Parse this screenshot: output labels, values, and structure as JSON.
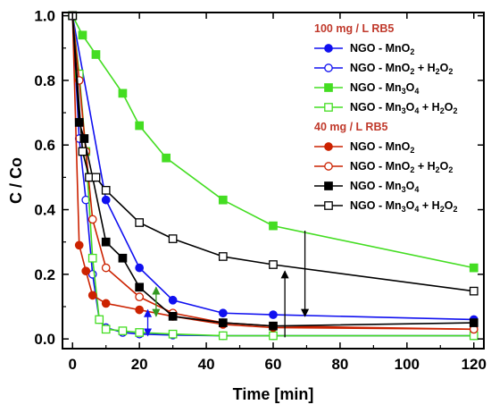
{
  "chart_data": {
    "type": "line",
    "xlabel": "Time [min]",
    "ylabel": "C / Co",
    "xlim": [
      -3,
      123
    ],
    "ylim": [
      -0.03,
      1.01
    ],
    "xticks": [
      0,
      20,
      40,
      60,
      80,
      100,
      120
    ],
    "xtick_labels": [
      "0",
      "20",
      "40",
      "60",
      "80",
      "100",
      "120"
    ],
    "yticks": [
      0.0,
      0.2,
      0.4,
      0.6,
      0.8,
      1.0
    ],
    "ytick_labels": [
      "0.0",
      "0.2",
      "0.4",
      "0.6",
      "0.8",
      "1.0"
    ],
    "grid": false,
    "legend_position": "top-right",
    "legend_groups": [
      {
        "title": "100 mg / L RB5",
        "series": [
          0,
          1,
          2,
          3
        ]
      },
      {
        "title": "40 mg / L RB5",
        "series": [
          4,
          5,
          6,
          7
        ]
      }
    ],
    "series": [
      {
        "label_main": "NGO - MnO",
        "label_sub": "2",
        "label_tail": "",
        "label_sub2": "",
        "color": "#1010f0",
        "marker": "circle",
        "filled": true,
        "x": [
          0,
          10,
          20,
          30,
          45,
          60,
          120
        ],
        "y": [
          1.0,
          0.43,
          0.22,
          0.12,
          0.08,
          0.075,
          0.06
        ]
      },
      {
        "label_main": "NGO - MnO",
        "label_sub": "2",
        "label_tail": " + H",
        "label_sub2": "2",
        "label_tail2": "O",
        "label_sub3": "2",
        "color": "#1010f0",
        "marker": "circle",
        "filled": false,
        "x": [
          0,
          2,
          4,
          6,
          8,
          10,
          15,
          20,
          30,
          45,
          60,
          120
        ],
        "y": [
          1.0,
          0.62,
          0.43,
          0.2,
          0.06,
          0.035,
          0.02,
          0.015,
          0.012,
          0.01,
          0.01,
          0.01
        ]
      },
      {
        "label_main": "NGO - Mn",
        "label_sub": "3",
        "label_tail": "O",
        "label_sub2": "4",
        "color": "#44dd22",
        "marker": "square",
        "filled": true,
        "x": [
          0,
          3,
          7,
          15,
          20,
          28,
          45,
          60,
          120
        ],
        "y": [
          1.0,
          0.94,
          0.88,
          0.76,
          0.66,
          0.56,
          0.43,
          0.35,
          0.22
        ]
      },
      {
        "label_main": "NGO - Mn",
        "label_sub": "3",
        "label_tail": "O",
        "label_sub2": "4",
        "label_tail2": " + H",
        "label_sub3": "2",
        "label_tail3": "O",
        "label_sub4": "2",
        "color": "#44dd22",
        "marker": "square",
        "filled": false,
        "x": [
          0,
          2,
          4,
          6,
          8,
          10,
          15,
          20,
          30,
          45,
          60,
          120
        ],
        "y": [
          1.0,
          0.82,
          0.58,
          0.25,
          0.06,
          0.03,
          0.025,
          0.02,
          0.015,
          0.01,
          0.01,
          0.01
        ]
      },
      {
        "label_main": "NGO - MnO",
        "label_sub": "2",
        "label_tail": "",
        "label_sub2": "",
        "color": "#cc2200",
        "marker": "circle",
        "filled": true,
        "x": [
          0,
          2,
          4,
          6,
          10,
          20,
          30,
          45,
          60,
          120
        ],
        "y": [
          1.0,
          0.29,
          0.21,
          0.135,
          0.11,
          0.09,
          0.07,
          0.045,
          0.035,
          0.03
        ]
      },
      {
        "label_main": "NGO - MnO",
        "label_sub": "2",
        "label_tail": " + H",
        "label_sub2": "2",
        "label_tail2": "O",
        "label_sub3": "2",
        "color": "#cc2200",
        "marker": "circle",
        "filled": false,
        "x": [
          0,
          2,
          4,
          6,
          10,
          20,
          30,
          45,
          60,
          120
        ],
        "y": [
          1.0,
          0.8,
          0.58,
          0.37,
          0.22,
          0.13,
          0.08,
          0.05,
          0.04,
          0.03
        ]
      },
      {
        "label_main": "NGO - Mn",
        "label_sub": "3",
        "label_tail": "O",
        "label_sub2": "4",
        "color": "#000000",
        "marker": "square",
        "filled": true,
        "x": [
          0,
          2,
          3.5,
          6,
          10,
          15,
          20,
          30,
          45,
          60,
          120
        ],
        "y": [
          1.0,
          0.67,
          0.62,
          0.5,
          0.3,
          0.25,
          0.16,
          0.07,
          0.05,
          0.04,
          0.05
        ]
      },
      {
        "label_main": "NGO - Mn",
        "label_sub": "3",
        "label_tail": "O",
        "label_sub2": "4",
        "label_tail2": " + H",
        "label_sub3": "2",
        "label_tail3": "O",
        "label_sub4": "2",
        "color": "#000000",
        "marker": "square",
        "filled": false,
        "x": [
          0,
          3,
          5,
          7,
          10,
          20,
          30,
          45,
          60,
          120
        ],
        "y": [
          1.0,
          0.58,
          0.5,
          0.5,
          0.46,
          0.36,
          0.31,
          0.255,
          0.23,
          0.148
        ]
      }
    ],
    "annotations": [
      {
        "type": "double-arrow",
        "color": "#000000",
        "x": [
          63.5,
          69.5
        ],
        "y": [
          0.005,
          0.335
        ]
      },
      {
        "type": "double-arrow",
        "color": "#1010f0",
        "x": [
          22.5,
          22.5
        ],
        "y": [
          0.01,
          0.09
        ]
      },
      {
        "type": "double-arrow",
        "color": "#339922",
        "x": [
          25,
          25
        ],
        "y": [
          0.07,
          0.16
        ]
      }
    ]
  }
}
